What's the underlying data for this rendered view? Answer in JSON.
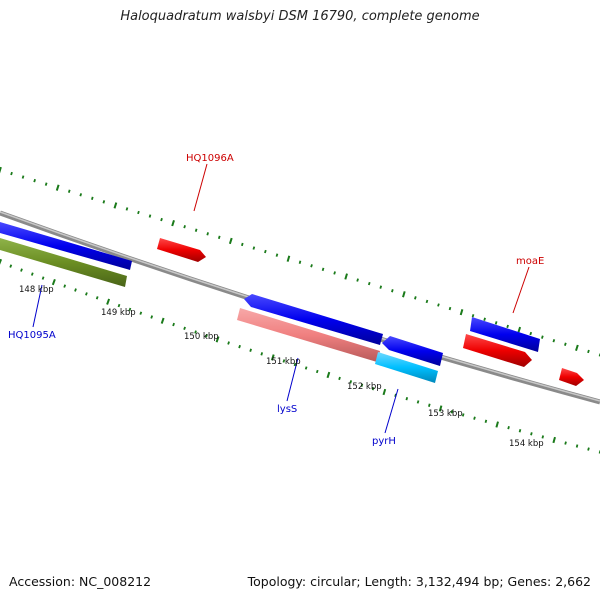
{
  "title": "Haloquadratum walsbyi DSM 16790, complete genome",
  "footer": {
    "accession": "Accession: NC_008212",
    "summary": "Topology: circular; Length: 3,132,494 bp; Genes: 2,662"
  },
  "scale_labels": [
    "148 kbp",
    "149 kbp",
    "150 kbp",
    "151 kbp",
    "152 kbp",
    "153 kbp",
    "154 kbp"
  ],
  "gene_labels": {
    "hq1096a": "HQ1096A",
    "moae": "moaE",
    "hq1095a": "HQ1095A",
    "lyss": "lysS",
    "pyrh": "pyrH"
  },
  "colors": {
    "backbone": "#8a8a8a",
    "tick": "#1a7a1a",
    "forward_cds": "#0000ee",
    "reverse_cds": "#ee0000",
    "olive_feature": "#6b8e23",
    "salmon_feature": "#f08080",
    "cyan_feature": "#00bfff",
    "label_red": "#cc0000",
    "label_blue": "#0000cc"
  }
}
